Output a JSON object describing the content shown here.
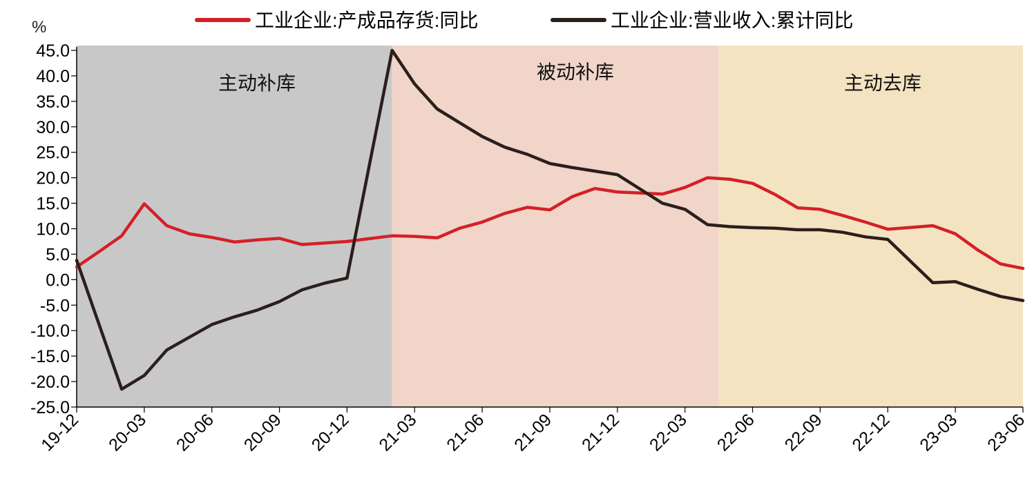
{
  "chart_data": {
    "type": "line",
    "y_unit": "%",
    "ylim": [
      -25,
      45
    ],
    "y_ticks": [
      "45.0",
      "40.0",
      "35.0",
      "30.0",
      "25.0",
      "20.0",
      "15.0",
      "10.0",
      "5.0",
      "0.0",
      "-5.0",
      "-10.0",
      "-15.0",
      "-20.0",
      "-25.0"
    ],
    "y_tick_values": [
      45,
      40,
      35,
      30,
      25,
      20,
      15,
      10,
      5,
      0,
      -5,
      -10,
      -15,
      -20,
      -25
    ],
    "x": [
      "19-12",
      "20-01",
      "20-02",
      "20-03",
      "20-04",
      "20-05",
      "20-06",
      "20-07",
      "20-08",
      "20-09",
      "20-10",
      "20-11",
      "20-12",
      "21-01",
      "21-02",
      "21-03",
      "21-04",
      "21-05",
      "21-06",
      "21-07",
      "21-08",
      "21-09",
      "21-10",
      "21-11",
      "21-12",
      "22-01",
      "22-02",
      "22-03",
      "22-04",
      "22-05",
      "22-06",
      "22-07",
      "22-08",
      "22-09",
      "22-10",
      "22-11",
      "22-12",
      "23-01",
      "23-02",
      "23-03",
      "23-04",
      "23-05",
      "23-06"
    ],
    "x_tick_labels": [
      "19-12",
      "20-03",
      "20-06",
      "20-09",
      "20-12",
      "21-03",
      "21-06",
      "21-09",
      "21-12",
      "22-03",
      "22-06",
      "22-09",
      "22-12",
      "23-03",
      "23-06"
    ],
    "x_tick_indices": [
      0,
      3,
      6,
      9,
      12,
      15,
      18,
      21,
      24,
      27,
      30,
      33,
      36,
      39,
      42
    ],
    "series": [
      {
        "name": "工业企业:产成品存货:同比",
        "color": "#d42027",
        "values": [
          2.5,
          5.5,
          8.6,
          14.9,
          10.6,
          9.0,
          8.3,
          7.4,
          7.8,
          8.1,
          6.9,
          7.2,
          7.5,
          null,
          8.6,
          8.5,
          8.2,
          10.1,
          11.3,
          13.0,
          14.2,
          13.7,
          16.3,
          17.9,
          17.2,
          null,
          16.8,
          18.1,
          20.0,
          19.7,
          18.9,
          16.7,
          14.1,
          13.8,
          12.6,
          11.3,
          9.9,
          null,
          10.6,
          9.0,
          5.8,
          3.1,
          2.2
        ]
      },
      {
        "name": "工业企业:营业收入:累计同比",
        "color": "#2b1f1c",
        "values": [
          3.8,
          null,
          -21.5,
          -18.8,
          -13.8,
          -11.3,
          -8.8,
          -7.3,
          -6.0,
          -4.3,
          -2.0,
          -0.7,
          0.3,
          null,
          45.0,
          38.4,
          33.5,
          30.8,
          28.1,
          26.0,
          24.6,
          22.8,
          22.0,
          21.3,
          20.6,
          null,
          15.0,
          13.8,
          10.8,
          10.4,
          10.2,
          10.1,
          9.8,
          9.8,
          9.3,
          8.4,
          7.9,
          null,
          -0.6,
          -0.4,
          -1.9,
          -3.3,
          -4.1
        ]
      }
    ],
    "regions": [
      {
        "label": "主动补库",
        "from_index": 0,
        "to_index": 14,
        "color": "#c8c8c8"
      },
      {
        "label": "被动补库",
        "from_index": 14,
        "to_index": 28.5,
        "color": "#f0d5c8"
      },
      {
        "label": "主动去库",
        "from_index": 28.5,
        "to_index": 42,
        "color": "#f3e3c1"
      }
    ],
    "legend_position": "top",
    "grid": false
  }
}
